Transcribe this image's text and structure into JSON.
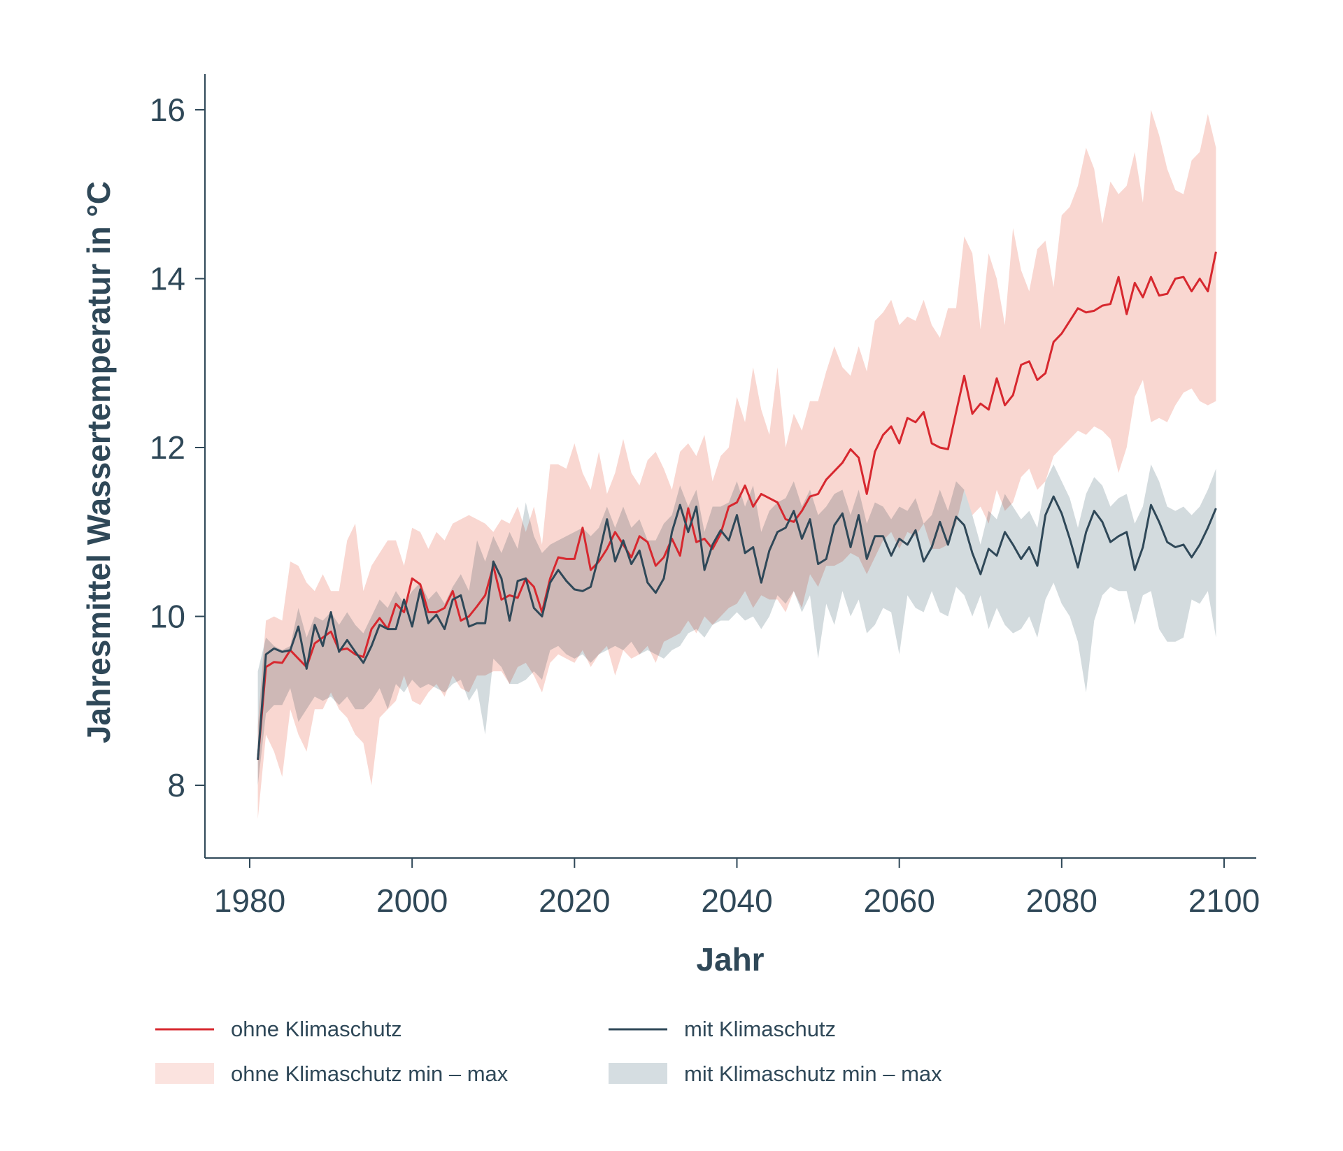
{
  "chart_data": {
    "type": "line",
    "title": "",
    "xlabel": "Jahr",
    "ylabel": "Jahresmittel Wassertemperatur in °C",
    "xlim": [
      1975,
      2105
    ],
    "ylim": [
      7.1,
      16.45
    ],
    "xticks": [
      1980,
      2000,
      2020,
      2040,
      2060,
      2080,
      2100
    ],
    "yticks": [
      8,
      10,
      12,
      14,
      16
    ],
    "grid": false,
    "legend": "bottom",
    "colors": {
      "ohne_line": "#d7282f",
      "ohne_band": "#f7c9c2",
      "mit_line": "#2f4858",
      "mit_band": "#bcc7cd"
    },
    "legend_entries": [
      {
        "label": "ohne Klimaschutz",
        "kind": "line",
        "color": "#d7282f"
      },
      {
        "label": "mit Klimaschutz",
        "kind": "line",
        "color": "#2f4858"
      },
      {
        "label": "ohne Klimaschutz min – max",
        "kind": "band",
        "color": "#fbe3df"
      },
      {
        "label": "mit Klimaschutz min – max",
        "kind": "band",
        "color": "#d5dde1"
      }
    ],
    "x": [
      1981,
      1982,
      1983,
      1984,
      1985,
      1986,
      1987,
      1988,
      1989,
      1990,
      1991,
      1992,
      1993,
      1994,
      1995,
      1996,
      1997,
      1998,
      1999,
      2000,
      2001,
      2002,
      2003,
      2004,
      2005,
      2006,
      2007,
      2008,
      2009,
      2010,
      2011,
      2012,
      2013,
      2014,
      2015,
      2016,
      2017,
      2018,
      2019,
      2020,
      2021,
      2022,
      2023,
      2024,
      2025,
      2026,
      2027,
      2028,
      2029,
      2030,
      2031,
      2032,
      2033,
      2034,
      2035,
      2036,
      2037,
      2038,
      2039,
      2040,
      2041,
      2042,
      2043,
      2044,
      2045,
      2046,
      2047,
      2048,
      2049,
      2050,
      2051,
      2052,
      2053,
      2054,
      2055,
      2056,
      2057,
      2058,
      2059,
      2060,
      2061,
      2062,
      2063,
      2064,
      2065,
      2066,
      2067,
      2068,
      2069,
      2070,
      2071,
      2072,
      2073,
      2074,
      2075,
      2076,
      2077,
      2078,
      2079,
      2080,
      2081,
      2082,
      2083,
      2084,
      2085,
      2086,
      2087,
      2088,
      2089,
      2090,
      2091,
      2092,
      2093,
      2094,
      2095,
      2096,
      2097,
      2098,
      2099
    ],
    "series": [
      {
        "name": "ohne Klimaschutz",
        "role": "line",
        "values": [
          8.3,
          9.4,
          9.46,
          9.45,
          9.6,
          9.5,
          9.4,
          9.68,
          9.75,
          9.82,
          9.6,
          9.62,
          9.55,
          9.52,
          9.85,
          9.98,
          9.85,
          10.15,
          10.05,
          10.45,
          10.38,
          10.05,
          10.05,
          10.1,
          10.3,
          9.95,
          10.0,
          10.12,
          10.25,
          10.6,
          10.2,
          10.25,
          10.22,
          10.45,
          10.35,
          10.05,
          10.45,
          10.7,
          10.68,
          10.68,
          11.05,
          10.55,
          10.65,
          10.8,
          11.0,
          10.85,
          10.7,
          10.95,
          10.88,
          10.6,
          10.7,
          10.92,
          10.72,
          11.28,
          10.88,
          10.92,
          10.8,
          10.98,
          11.3,
          11.35,
          11.55,
          11.3,
          11.45,
          11.4,
          11.35,
          11.15,
          11.12,
          11.25,
          11.42,
          11.45,
          11.62,
          11.72,
          11.82,
          11.98,
          11.88,
          11.45,
          11.95,
          12.15,
          12.25,
          12.05,
          12.35,
          12.3,
          12.42,
          12.05,
          12.0,
          11.98,
          12.42,
          12.85,
          12.4,
          12.52,
          12.45,
          12.82,
          12.5,
          12.62,
          12.98,
          13.02,
          12.8,
          12.88,
          13.25,
          13.35,
          13.5,
          13.65,
          13.6,
          13.62,
          13.68,
          13.7,
          14.02,
          13.58,
          13.95,
          13.78,
          14.02,
          13.8,
          13.82,
          14.0,
          14.02,
          13.85,
          14.0,
          13.85,
          14.32
        ]
      },
      {
        "name": "mit Klimaschutz",
        "role": "line",
        "values": [
          8.3,
          9.55,
          9.62,
          9.58,
          9.6,
          9.88,
          9.38,
          9.9,
          9.65,
          10.05,
          9.58,
          9.72,
          9.58,
          9.45,
          9.65,
          9.9,
          9.85,
          9.85,
          10.2,
          9.88,
          10.32,
          9.92,
          10.02,
          9.85,
          10.2,
          10.25,
          9.88,
          9.92,
          9.92,
          10.65,
          10.45,
          9.95,
          10.42,
          10.45,
          10.1,
          10.0,
          10.4,
          10.55,
          10.42,
          10.32,
          10.3,
          10.35,
          10.72,
          11.15,
          10.65,
          10.9,
          10.62,
          10.78,
          10.4,
          10.28,
          10.45,
          11.0,
          11.32,
          11.0,
          11.3,
          10.55,
          10.85,
          11.02,
          10.9,
          11.2,
          10.75,
          10.82,
          10.4,
          10.78,
          11.0,
          11.05,
          11.25,
          10.92,
          11.15,
          10.62,
          10.68,
          11.08,
          11.22,
          10.82,
          11.2,
          10.68,
          10.95,
          10.95,
          10.72,
          10.92,
          10.85,
          11.02,
          10.65,
          10.82,
          11.12,
          10.85,
          11.18,
          11.08,
          10.75,
          10.5,
          10.8,
          10.72,
          11.0,
          10.85,
          10.68,
          10.82,
          10.6,
          11.2,
          11.42,
          11.22,
          10.92,
          10.58,
          11.0,
          11.25,
          11.12,
          10.88,
          10.95,
          11.0,
          10.55,
          10.82,
          11.32,
          11.12,
          10.88,
          10.82,
          10.85,
          10.7,
          10.85,
          11.05,
          11.28
        ]
      },
      {
        "name": "ohne Klimaschutz min – max",
        "role": "band",
        "lower": [
          7.6,
          8.6,
          8.4,
          8.1,
          8.9,
          8.6,
          8.4,
          8.9,
          8.9,
          9.1,
          8.9,
          8.8,
          8.6,
          8.5,
          8.0,
          8.8,
          8.9,
          9.0,
          9.3,
          9.0,
          8.95,
          9.1,
          9.2,
          9.05,
          9.3,
          9.15,
          9.1,
          9.3,
          9.3,
          9.35,
          9.35,
          9.2,
          9.4,
          9.45,
          9.3,
          9.1,
          9.45,
          9.55,
          9.5,
          9.45,
          9.6,
          9.4,
          9.55,
          9.65,
          9.3,
          9.6,
          9.5,
          9.55,
          9.65,
          9.45,
          9.7,
          9.75,
          9.8,
          9.95,
          9.8,
          10.0,
          9.9,
          10.0,
          10.1,
          10.15,
          10.3,
          10.1,
          10.25,
          10.2,
          10.2,
          10.05,
          10.3,
          10.1,
          10.5,
          10.35,
          10.6,
          10.6,
          10.65,
          10.75,
          10.7,
          10.5,
          10.7,
          10.9,
          11.0,
          10.8,
          11.0,
          10.95,
          11.1,
          10.8,
          10.8,
          10.85,
          11.1,
          11.5,
          11.2,
          11.3,
          11.1,
          11.5,
          11.25,
          11.35,
          11.65,
          11.75,
          11.5,
          11.6,
          11.9,
          12.0,
          12.1,
          12.2,
          12.15,
          12.25,
          12.2,
          12.1,
          11.7,
          12.0,
          12.6,
          12.8,
          12.3,
          12.35,
          12.3,
          12.5,
          12.65,
          12.7,
          12.55,
          12.5,
          12.55
        ],
        "upper": [
          8.7,
          9.95,
          10.0,
          9.95,
          10.65,
          10.6,
          10.4,
          10.3,
          10.5,
          10.3,
          10.3,
          10.9,
          11.1,
          10.3,
          10.6,
          10.75,
          10.9,
          10.9,
          10.6,
          11.05,
          11.0,
          10.8,
          11.0,
          10.9,
          11.1,
          11.15,
          11.2,
          11.15,
          11.1,
          11.0,
          11.15,
          11.1,
          11.3,
          11.0,
          11.3,
          10.85,
          11.8,
          11.8,
          11.75,
          12.05,
          11.7,
          11.5,
          11.95,
          11.45,
          11.7,
          12.1,
          11.7,
          11.55,
          11.85,
          11.95,
          11.75,
          11.5,
          11.95,
          12.05,
          11.9,
          12.15,
          11.6,
          11.9,
          12.0,
          12.6,
          12.3,
          12.95,
          12.45,
          12.15,
          12.95,
          12.0,
          12.4,
          12.2,
          12.55,
          12.55,
          12.9,
          13.2,
          12.95,
          12.85,
          13.2,
          12.9,
          13.5,
          13.6,
          13.75,
          13.45,
          13.55,
          13.5,
          13.75,
          13.45,
          13.3,
          13.65,
          13.65,
          14.5,
          14.3,
          13.4,
          14.3,
          14.0,
          13.45,
          14.6,
          14.1,
          13.85,
          14.35,
          14.45,
          13.9,
          14.75,
          14.85,
          15.1,
          15.55,
          15.3,
          14.65,
          15.15,
          15.0,
          15.1,
          15.5,
          14.9,
          16.0,
          15.7,
          15.3,
          15.05,
          15.0,
          15.4,
          15.5,
          15.95,
          15.55
        ]
      },
      {
        "name": "mit Klimaschutz min – max",
        "role": "band",
        "lower": [
          8.0,
          8.85,
          8.95,
          8.95,
          9.15,
          8.75,
          8.9,
          9.05,
          9.0,
          9.05,
          8.95,
          9.05,
          8.9,
          8.9,
          9.0,
          9.15,
          8.9,
          9.2,
          9.1,
          9.25,
          9.15,
          9.2,
          9.15,
          9.1,
          9.2,
          9.25,
          9.0,
          9.15,
          8.6,
          9.5,
          9.4,
          9.2,
          9.2,
          9.25,
          9.35,
          9.25,
          9.6,
          9.65,
          9.55,
          9.5,
          9.55,
          9.45,
          9.55,
          9.6,
          9.65,
          9.6,
          9.7,
          9.55,
          9.6,
          9.55,
          9.5,
          9.6,
          9.65,
          9.8,
          9.85,
          9.75,
          9.9,
          9.95,
          9.95,
          10.05,
          9.95,
          10.0,
          9.85,
          10.0,
          10.25,
          10.15,
          10.3,
          10.05,
          10.25,
          9.5,
          10.15,
          9.9,
          10.3,
          10.0,
          10.2,
          9.8,
          9.9,
          10.1,
          10.05,
          9.55,
          10.25,
          10.1,
          10.05,
          10.3,
          10.05,
          10.0,
          10.35,
          10.25,
          10.0,
          10.25,
          9.85,
          10.1,
          9.9,
          9.8,
          9.85,
          10.0,
          9.75,
          10.2,
          10.4,
          10.15,
          10.0,
          9.7,
          9.1,
          9.95,
          10.25,
          10.35,
          10.3,
          10.3,
          9.9,
          10.25,
          10.3,
          9.85,
          9.7,
          9.7,
          9.75,
          10.2,
          10.15,
          10.3,
          9.75
        ],
        "upper": [
          9.35,
          9.75,
          9.65,
          9.6,
          9.65,
          10.1,
          9.75,
          10.0,
          9.95,
          10.05,
          9.9,
          10.05,
          9.9,
          9.8,
          10.0,
          10.2,
          10.1,
          10.3,
          10.15,
          10.3,
          10.4,
          10.2,
          10.3,
          10.15,
          10.35,
          10.5,
          10.3,
          10.9,
          10.65,
          10.95,
          10.75,
          11.0,
          10.8,
          11.35,
          10.95,
          10.75,
          10.85,
          10.9,
          10.95,
          11.0,
          11.05,
          10.95,
          11.05,
          11.3,
          11.05,
          11.3,
          11.05,
          11.15,
          10.9,
          10.9,
          11.1,
          11.2,
          11.55,
          11.3,
          11.5,
          11.0,
          11.3,
          11.3,
          11.35,
          11.6,
          11.3,
          11.55,
          11.0,
          11.25,
          11.35,
          11.4,
          11.6,
          11.3,
          11.5,
          11.2,
          11.3,
          11.45,
          11.5,
          11.2,
          11.5,
          11.1,
          11.35,
          11.3,
          11.15,
          11.3,
          11.25,
          11.4,
          11.1,
          11.2,
          11.5,
          11.25,
          11.6,
          11.5,
          11.2,
          10.85,
          11.25,
          11.15,
          11.45,
          11.3,
          11.15,
          11.25,
          11.05,
          11.6,
          11.8,
          11.6,
          11.4,
          11.05,
          11.45,
          11.65,
          11.55,
          11.3,
          11.4,
          11.45,
          11.1,
          11.3,
          11.8,
          11.6,
          11.3,
          11.25,
          11.3,
          11.2,
          11.3,
          11.5,
          11.75
        ]
      }
    ]
  }
}
